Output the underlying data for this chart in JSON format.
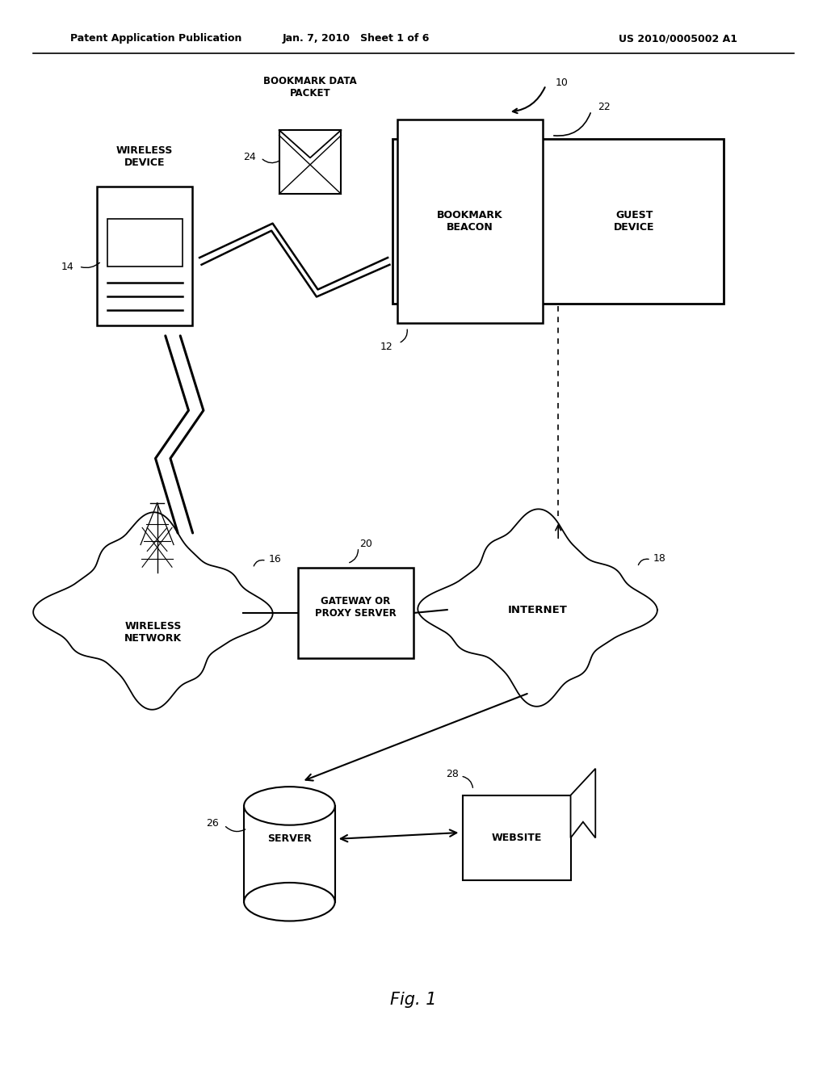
{
  "bg_color": "#ffffff",
  "lc": "#000000",
  "header_left": "Patent Application Publication",
  "header_mid": "Jan. 7, 2010   Sheet 1 of 6",
  "header_right": "US 2010/0005002 A1",
  "fig_label": "Fig. 1",
  "wd_label": "WIRELESS\nDEVICE",
  "wd_id": "14",
  "env_label": "BOOKMARK DATA\nPACKET",
  "env_id": "24",
  "bb_label": "BOOKMARK\nBEACON",
  "gd_label": "GUEST\nDEVICE",
  "box22_id": "22",
  "bb_id": "12",
  "sys_id": "10",
  "wn_label": "WIRELESS\nNETWORK",
  "wn_id": "16",
  "gw_label": "GATEWAY OR\nPROXY SERVER",
  "gw_id": "20",
  "int_label": "INTERNET",
  "int_id": "18",
  "srv_label": "SERVER",
  "srv_id": "26",
  "ws_label": "WEBSITE",
  "ws_id": "28"
}
